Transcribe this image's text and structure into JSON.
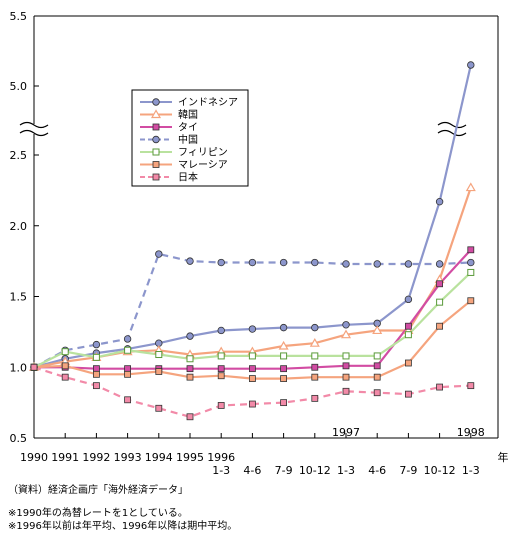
{
  "chart_data": {
    "type": "line",
    "title": "",
    "xlabel": "年",
    "ylabel": "",
    "y_ticks_lower": [
      "0.5",
      "1.0",
      "1.5",
      "2.0",
      "2.5"
    ],
    "y_ticks_upper": [
      "5.0",
      "5.5"
    ],
    "ylim_lower": [
      0.5,
      2.6
    ],
    "ylim_upper": [
      4.8,
      5.5
    ],
    "axis_break": true,
    "legend_position": "top-left",
    "grid": false,
    "x_ticks": [
      {
        "line1": "1990",
        "line2": "",
        "line3": ""
      },
      {
        "line1": "1991",
        "line2": "",
        "line3": ""
      },
      {
        "line1": "1992",
        "line2": "",
        "line3": ""
      },
      {
        "line1": "1993",
        "line2": "",
        "line3": ""
      },
      {
        "line1": "1994",
        "line2": "",
        "line3": ""
      },
      {
        "line1": "1995",
        "line2": "",
        "line3": ""
      },
      {
        "line1": "1996",
        "line2": "1-3",
        "line3": ""
      },
      {
        "line1": "",
        "line2": "4-6",
        "line3": ""
      },
      {
        "line1": "",
        "line2": "7-9",
        "line3": ""
      },
      {
        "line1": "",
        "line2": "10-12",
        "line3": ""
      },
      {
        "line1": "",
        "line2": "1997",
        "line3": "1-3"
      },
      {
        "line1": "",
        "line2": "4-6",
        "line3": ""
      },
      {
        "line1": "",
        "line2": "7-9",
        "line3": ""
      },
      {
        "line1": "",
        "line2": "10-12",
        "line3": ""
      },
      {
        "line1": "",
        "line2": "1998",
        "line3": "1-3"
      }
    ],
    "series": [
      {
        "name": "インドネシア",
        "color": "#8c96cc",
        "dashed": false,
        "marker": "circle",
        "values": [
          1.0,
          1.06,
          1.1,
          1.13,
          1.17,
          1.22,
          1.26,
          1.27,
          1.28,
          1.28,
          1.3,
          1.31,
          1.48,
          2.17,
          5.15
        ]
      },
      {
        "name": "韓国",
        "color": "#f5a47e",
        "dashed": false,
        "marker": "triangle",
        "values": [
          1.0,
          1.04,
          1.07,
          1.11,
          1.12,
          1.09,
          1.11,
          1.11,
          1.15,
          1.17,
          1.23,
          1.26,
          1.26,
          1.62,
          2.27
        ]
      },
      {
        "name": "タイ",
        "color": "#d24ca3",
        "dashed": false,
        "marker": "square",
        "values": [
          1.0,
          1.0,
          0.99,
          0.99,
          0.99,
          0.99,
          0.99,
          0.99,
          0.99,
          1.0,
          1.01,
          1.01,
          1.29,
          1.59,
          1.83
        ]
      },
      {
        "name": "中国",
        "color": "#8c96cc",
        "dashed": true,
        "marker": "circle",
        "values": [
          1.0,
          1.12,
          1.16,
          1.2,
          1.8,
          1.75,
          1.74,
          1.74,
          1.74,
          1.74,
          1.73,
          1.73,
          1.73,
          1.73,
          1.74
        ]
      },
      {
        "name": "フィリピン",
        "color": "#b9e29e",
        "dashed": false,
        "marker": "square-open",
        "values": [
          1.0,
          1.11,
          1.07,
          1.12,
          1.09,
          1.06,
          1.08,
          1.08,
          1.08,
          1.08,
          1.08,
          1.08,
          1.23,
          1.46,
          1.67
        ]
      },
      {
        "name": "マレーシア",
        "color": "#f5a47e",
        "dashed": false,
        "marker": "square",
        "values": [
          1.0,
          1.01,
          0.95,
          0.95,
          0.97,
          0.93,
          0.94,
          0.92,
          0.92,
          0.93,
          0.93,
          0.93,
          1.03,
          1.29,
          1.47
        ]
      },
      {
        "name": "日本",
        "color": "#f28aa8",
        "dashed": true,
        "marker": "square",
        "values": [
          1.0,
          0.93,
          0.87,
          0.77,
          0.71,
          0.65,
          0.73,
          0.74,
          0.75,
          0.78,
          0.83,
          0.82,
          0.81,
          0.86,
          0.87
        ]
      }
    ]
  },
  "notes": {
    "source": "（資料）経済企画庁「海外経済データ」",
    "note1": "※1990年の為替レートを1としている。",
    "note2": "※1996年以前は年平均、1996年以降は期中平均。"
  }
}
